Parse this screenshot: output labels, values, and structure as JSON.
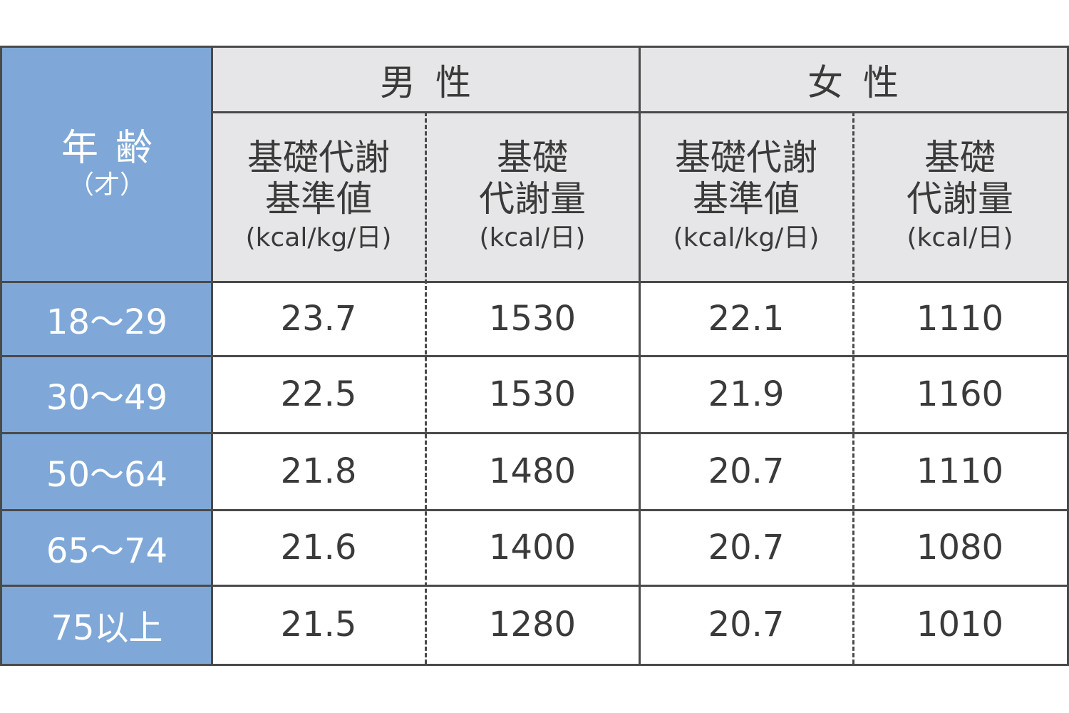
{
  "header": {
    "age_label": "年齢",
    "age_unit": "（才）",
    "groups": [
      {
        "label": "男性"
      },
      {
        "label": "女性"
      }
    ],
    "columns": [
      {
        "line1": "基礎代謝",
        "line2": "基準値",
        "unit": "(kcal/kg/日)"
      },
      {
        "line1": "基礎",
        "line2": "代謝量",
        "unit": "(kcal/日)"
      },
      {
        "line1": "基礎代謝",
        "line2": "基準値",
        "unit": "(kcal/kg/日)"
      },
      {
        "line1": "基礎",
        "line2": "代謝量",
        "unit": "(kcal/日)"
      }
    ]
  },
  "rows": [
    {
      "age": "18～29",
      "values": [
        "23.7",
        "1530",
        "22.1",
        "1110"
      ]
    },
    {
      "age": "30～49",
      "values": [
        "22.5",
        "1530",
        "21.9",
        "1160"
      ]
    },
    {
      "age": "50～64",
      "values": [
        "21.8",
        "1480",
        "20.7",
        "1110"
      ]
    },
    {
      "age": "65～74",
      "values": [
        "21.6",
        "1400",
        "20.7",
        "1080"
      ]
    },
    {
      "age": "75以上",
      "values": [
        "21.5",
        "1280",
        "20.7",
        "1010"
      ]
    }
  ],
  "colors": {
    "age_column_bg": "#7fa8d8",
    "header_bg": "#e6e6e8",
    "border": "#4a4a4a",
    "text": "#3a3a3a"
  }
}
